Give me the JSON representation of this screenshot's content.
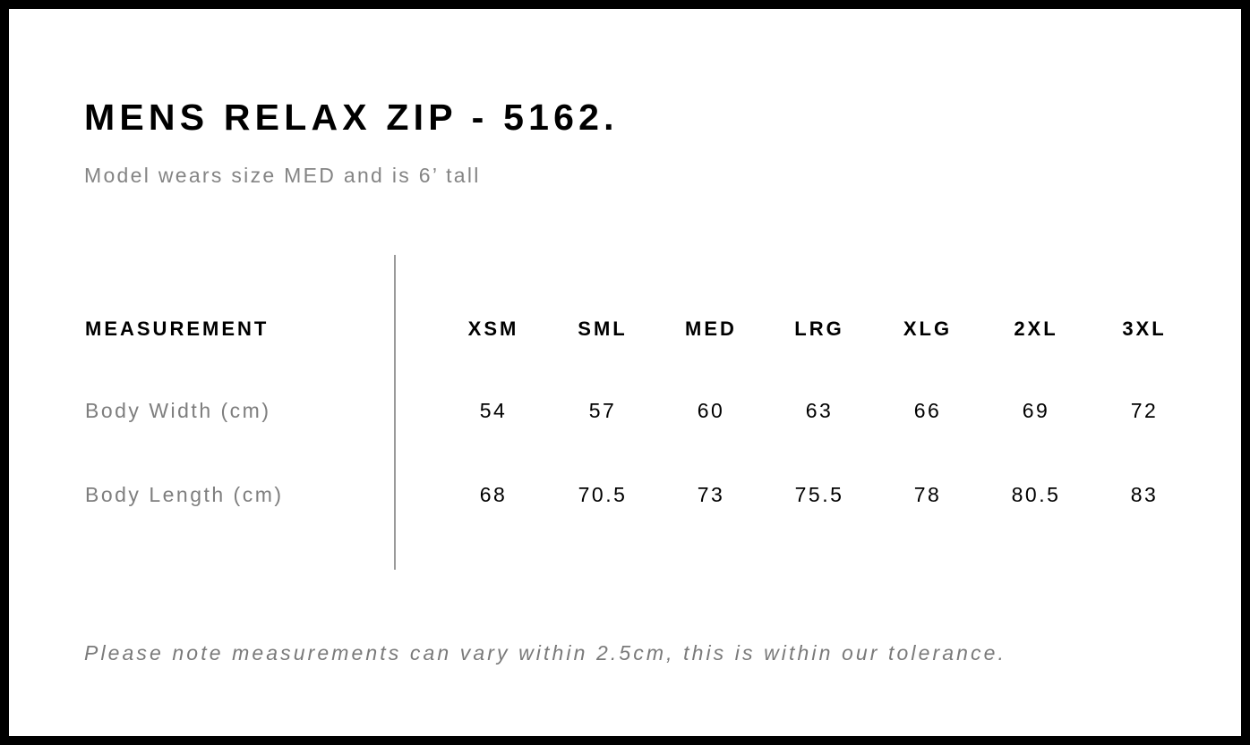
{
  "title": "MENS RELAX ZIP - 5162.",
  "subtitle": "Model wears size MED and is 6’ tall",
  "table": {
    "header_label": "MEASUREMENT",
    "sizes": [
      "XSM",
      "SML",
      "MED",
      "LRG",
      "XLG",
      "2XL",
      "3XL"
    ],
    "rows": [
      {
        "label": "Body Width (cm)",
        "values": [
          "54",
          "57",
          "60",
          "63",
          "66",
          "69",
          "72"
        ]
      },
      {
        "label": "Body Length (cm)",
        "values": [
          "68",
          "70.5",
          "73",
          "75.5",
          "78",
          "80.5",
          "83"
        ]
      }
    ]
  },
  "note": "Please note measurements can vary within 2.5cm, this is within our tolerance."
}
